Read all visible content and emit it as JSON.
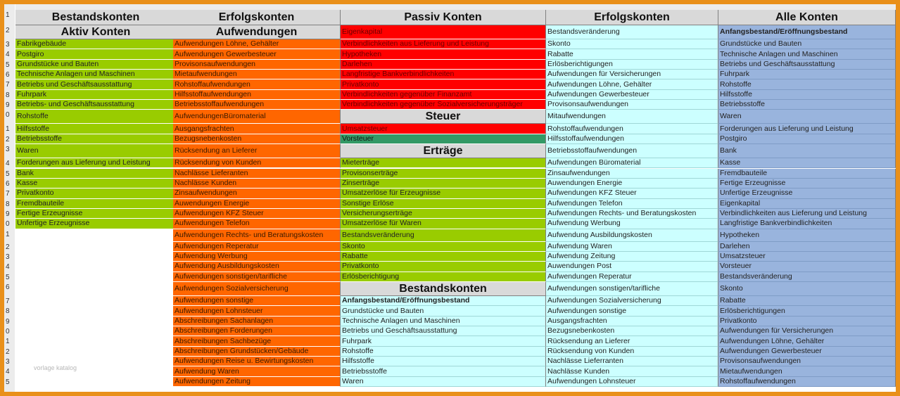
{
  "row_numbers": [
    "1",
    "2",
    "3",
    "4",
    "5",
    "6",
    "7",
    "8",
    "9",
    "0",
    "1",
    "2",
    "3",
    "4",
    "5",
    "6",
    "7",
    "8",
    "9",
    "0",
    "1",
    "2",
    "3",
    "4",
    "5",
    "6",
    "7",
    "8",
    "9",
    "0",
    "1",
    "2",
    "3",
    "4",
    "5"
  ],
  "watermark": "vorlage katalog",
  "col1": {
    "header": "Bestandskonten",
    "subheader": "Aktiv Konten",
    "items": [
      "Fabrikgebäude",
      "Postgiro",
      "Grundstücke und Bauten",
      "Technische Anlagen und Maschinen",
      "Betriebs und Geschäftsausstattung",
      "Fuhrpark",
      "Betriebs- und Geschäftsausstattung",
      "Rohstoffe",
      "Hilfsstoffe",
      "Betriebsstoffe",
      "Waren",
      "Forderungen aus Lieferung und Leistung",
      "Bank",
      "Kasse",
      "Privatkonto",
      "Fremdbauteile",
      "Fertige Erzeugnisse",
      "Unfertige Erzeugnisse"
    ]
  },
  "col2": {
    "header": "Erfolgskonten",
    "subheader": "Aufwendungen",
    "items": [
      "Aufwendungen Löhne, Gehälter",
      "Aufwendungen Gewerbesteuer",
      "Provisonsaufwendungen",
      "Mietaufwendungen",
      "Rohstoffaufwendungen",
      "Hilfsstoffaufwendungen",
      "Betriebsstoffaufwendungen",
      "AufwendungenBüromaterial",
      "Ausgangsfrachten",
      "Bezugsnebenkosten",
      "Rücksendung an Lieferer",
      "Rücksendung von Kunden",
      "Nachlässe Lieferanten",
      "Nachlässe Kunden",
      "Zinsaufwendungen",
      "Auwendungen Energie",
      "Aufwendungen KFZ Steuer",
      "Aufwendungen Telefon",
      "Aufwendungen Rechts- und Beratungskosten",
      "Aufwendungen Reperatur",
      "Aufwendung Werbung",
      "Aufwendung Ausbildungskosten",
      "Aufwendungen sonstigen/tarifliche",
      "Aufwendungen Sozialversicherung",
      "Aufwendungen sonstige",
      "Aufwendungen Lohnsteuer",
      "Abschreibungen Sachanlagen",
      "Abschreibungen Forderungen",
      "Abschreibungen Sachbezüge",
      "Abschreibungen Grundstücken/Gebäude",
      "Aufwendungen Reise u. Bewirtungskosten",
      "Aufwendung Waren",
      "Aufwendungen Zeitung"
    ]
  },
  "col3": {
    "header": "Passiv Konten",
    "passiv_items": [
      "Eigenkapital",
      "Verbindlichkeiten aus Lieferung und Leistung",
      "Hypotheken",
      "Darlehen",
      "Langfristige Bankverbindlichkeiten",
      "Privatkonto",
      "Verbindlichkeiten gegenüber Finanzamt",
      "Verbindlichkeiten gegenüber Sozialversicherungsträger"
    ],
    "steuer_header": "Steuer",
    "steuer_items": [
      "Umsatzsteuer",
      "Vorsteuer"
    ],
    "ertraege_header": "Erträge",
    "ertraege_items": [
      "Mieterträge",
      "Provisonserträge",
      "Zinserträge",
      "Umsatzerlöse für Erzeugnisse",
      "Sonstige Erlöse",
      "Versicherungserträge",
      "Umsatzerlöse für Waren",
      "Bestandsveränderung",
      "Skonto",
      "Rabatte",
      "Privatkonto",
      "Erlösberichtigung"
    ],
    "bestand_header": "Bestandskonten",
    "bestand_items": [
      "Anfangsbestand/Eröffnungsbestand",
      "Grundstücke und Bauten",
      "Technische Anlagen und Maschinen",
      "Betriebs und Geschäftsausstattung",
      "Fuhrpark",
      "Rohstoffe",
      "Hilfsstoffe",
      "Betriebsstoffe",
      "Waren"
    ]
  },
  "col4": {
    "header": "Erfolgskonten",
    "items": [
      "Bestandsveränderung",
      "Skonto",
      "Rabatte",
      "Erlösberichtigungen",
      "Aufwendungen für Versicherungen",
      "Aufwendungen Löhne, Gehälter",
      "Aufwendungen Gewerbesteuer",
      "Provisonsaufwendungen",
      "Mitaufwendungen",
      "Rohstoffaufwendungen",
      "Hilfsstoffaufwendungen",
      "Betriebsstoffaufwendungen",
      "Aufwendungen Büromaterial",
      "Zinsaufwendungen",
      "Auwendungen Energie",
      "Aufwendungen KFZ Steuer",
      "Aufwendungen Telefon",
      "Aufwendungen Rechts- und Beratungskosten",
      "Aufwendung Werbung",
      "Aufwendung Ausbildungskosten",
      "Aufwendung Waren",
      "Aufwendung Zeitung",
      "Auwendungen Post",
      "Aufwendungen Reperatur",
      "Aufwendungen sonstigen/tarifliche",
      "Aufwendungen Sozialversicherung",
      "Aufwendungen sonstige",
      "Ausgangsfrachten",
      "Bezugsnebenkosten",
      "Rücksendung an Lieferer",
      "Rücksendung von Kunden",
      "Nachlässe Lieferranten",
      "Nachlässe Kunden",
      "Aufwendungen Lohnsteuer"
    ]
  },
  "col5": {
    "header": "Alle Konten",
    "items": [
      "Anfangsbestand/Eröffnungsbestand",
      "Grundstücke und Bauten",
      "Technische Anlagen und Maschinen",
      "Betriebs und Geschäftsausstattung",
      "Fuhrpark",
      "Rohstoffe",
      "Hilfsstoffe",
      "Betriebsstoffe",
      "Waren",
      "Forderungen aus Lieferung und Leistung",
      "Postgiro",
      "Bank",
      "Kasse",
      "Fremdbauteile",
      "Fertige Erzeugnisse",
      "Unfertige Erzeugnisse",
      "Eigenkapital",
      "Verbindlichkeiten aus Lieferung und Leistung",
      "Langfristige Bankverbindlichkeiten",
      "Hypotheken",
      "Darlehen",
      "Umsatzsteuer",
      "Vorsteuer",
      "Bestandsveränderung",
      "Skonto",
      "Rabatte",
      "Erlösberichtigungen",
      "Privatkonto",
      "Aufwendungen für Versicherungen",
      "Aufwendungen Löhne, Gehälter",
      "Aufwendungen Gewerbesteuer",
      "Provisonsaufwendungen",
      "Mietaufwendungen",
      "Rohstoffaufwendungen"
    ]
  }
}
